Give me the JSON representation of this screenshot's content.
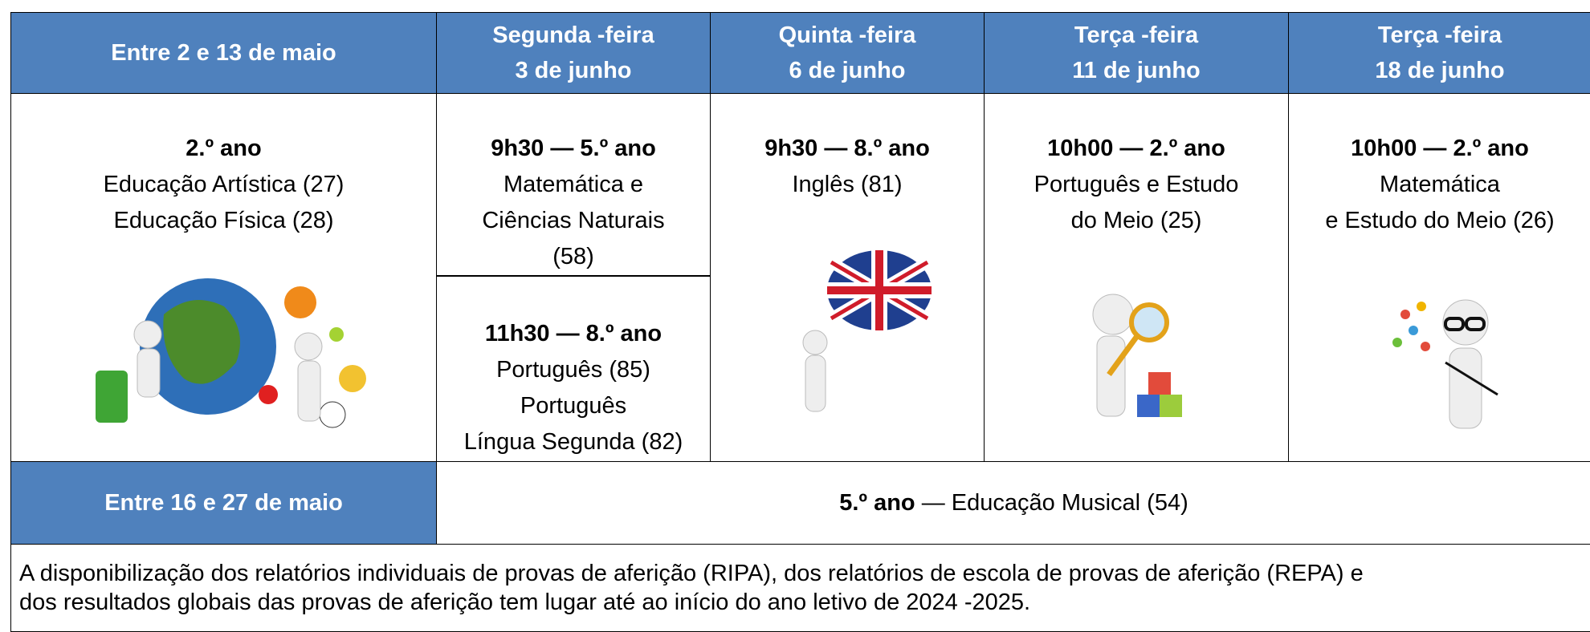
{
  "header": [
    [
      "Entre 2 e 13  de maio"
    ],
    [
      "Segunda -feira",
      "3 de junho"
    ],
    [
      "Quinta -feira",
      "6 de junho"
    ],
    [
      "Terça -feira",
      "11 de junho"
    ],
    [
      "Terça -feira",
      "18 de junho"
    ]
  ],
  "schedule": [
    [
      {
        "heading": "2.º ano",
        "lines": [
          "Educação Artística (27)",
          "Educação Física (28)"
        ]
      }
    ],
    [
      {
        "heading": "9h30 — 5.º ano",
        "lines": [
          "Matemática e",
          "Ciências Naturais",
          "(58)"
        ]
      },
      {
        "heading": "11h30 — 8.º ano",
        "lines": [
          "Português (85)",
          "Português",
          "Língua Segunda (82)"
        ]
      }
    ],
    [
      {
        "heading": "9h30 — 8.º ano",
        "lines": [
          "Inglês (81)"
        ]
      }
    ],
    [
      {
        "heading": "10h00 — 2.º ano",
        "lines": [
          "Português e Estudo",
          "do  Meio (25)"
        ]
      }
    ],
    [
      {
        "heading": "10h00 — 2.º ano",
        "lines": [
          "Matemática",
          "e Estudo do Meio (26)"
        ]
      }
    ]
  ],
  "music": {
    "period": "Entre 16 e 27 de maio",
    "year": "5.º ano",
    "subject": "— Educação Musical (54)"
  },
  "note": [
    "A disponibilização dos relatórios individuais de provas de aferição (RIPA), dos relatórios de escola de provas de aferição (REPA) e",
    "dos resultados globais das provas de aferição tem lugar até ao início do ano letivo de 2024 -2025."
  ]
}
